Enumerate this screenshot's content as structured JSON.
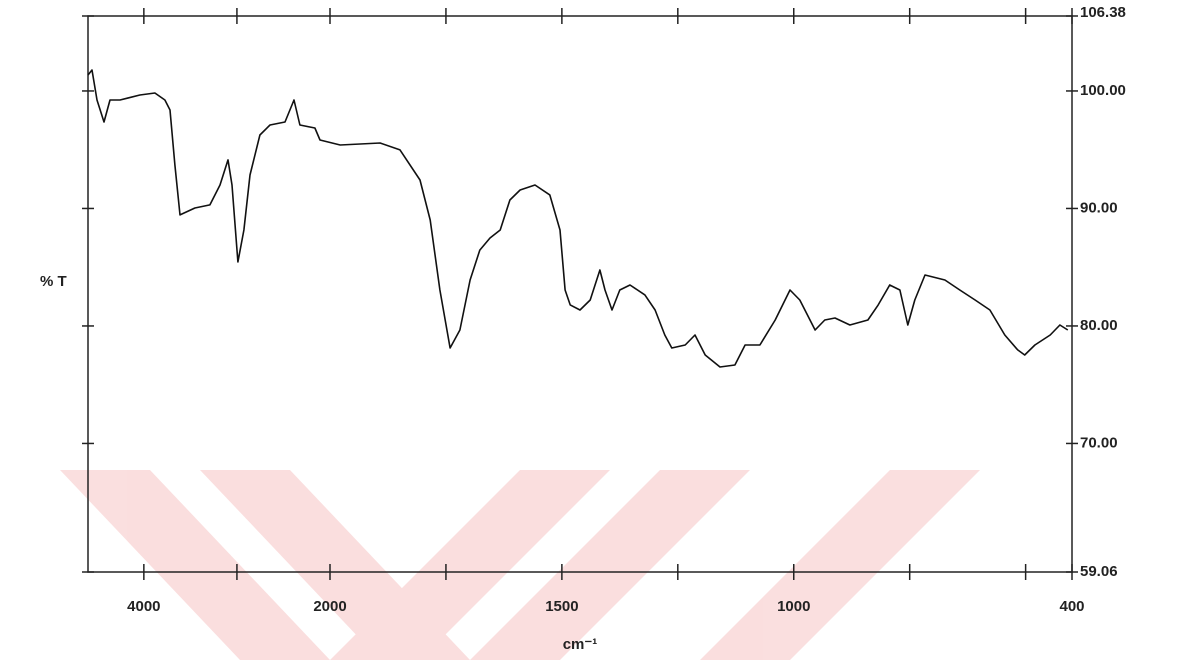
{
  "chart_data": {
    "type": "line",
    "y_label": "% T",
    "x_label": "cm⁻¹",
    "x": [
      4600,
      4557,
      4503,
      4428,
      4364,
      4256,
      4042,
      3881,
      3774,
      3719,
      3666,
      3612,
      3451,
      3290,
      3182,
      3096,
      3053,
      2989,
      2925,
      2860,
      2753,
      2645,
      2484,
      2387,
      2323,
      2162,
      2107,
      1978,
      1892,
      1849,
      1806,
      1784,
      1763,
      1741,
      1720,
      1698,
      1677,
      1655,
      1633,
      1612,
      1590,
      1558,
      1526,
      1504,
      1493,
      1482,
      1461,
      1439,
      1418,
      1407,
      1392,
      1375,
      1353,
      1321,
      1299,
      1278,
      1263,
      1234,
      1213,
      1191,
      1159,
      1127,
      1105,
      1073,
      1040,
      1008,
      987,
      954,
      933,
      911,
      879,
      840,
      818,
      793,
      771,
      754,
      739,
      717,
      674,
      642,
      609,
      577,
      545,
      517,
      502,
      480,
      447,
      426,
      409
    ],
    "values": [
      101.36,
      101.78,
      99.23,
      97.36,
      99.23,
      99.23,
      99.66,
      99.83,
      99.23,
      98.38,
      93.7,
      89.45,
      90.04,
      90.3,
      92.0,
      94.13,
      92.0,
      85.44,
      88.17,
      92.85,
      96.25,
      97.1,
      97.36,
      99.23,
      97.1,
      96.85,
      95.83,
      95.4,
      95.57,
      94.98,
      92.42,
      89.02,
      83.06,
      78.12,
      79.66,
      83.91,
      86.46,
      87.49,
      88.17,
      90.72,
      91.57,
      92.0,
      91.15,
      88.17,
      83.06,
      81.79,
      81.36,
      82.21,
      84.76,
      83.06,
      81.36,
      83.06,
      83.49,
      82.64,
      81.36,
      79.23,
      78.12,
      78.38,
      79.23,
      77.53,
      76.51,
      76.68,
      78.38,
      78.38,
      80.51,
      83.06,
      82.21,
      79.66,
      80.51,
      80.68,
      80.08,
      80.51,
      81.79,
      83.49,
      83.06,
      80.08,
      82.21,
      84.34,
      83.91,
      83.06,
      82.21,
      81.36,
      79.23,
      77.96,
      77.53,
      78.38,
      79.23,
      80.08,
      79.66
    ],
    "color": "#111111",
    "xlim": [
      4600,
      400
    ],
    "x_scale_break": 2000,
    "xticks": [
      4000,
      2000,
      1500,
      1000,
      400
    ],
    "xminor_ticks": [
      3000,
      1750,
      1250,
      750,
      500
    ],
    "ylim": [
      59.06,
      106.38
    ],
    "yticks": [
      59.06,
      {
        "value": 70,
        "label": "70.00"
      },
      {
        "value": 80,
        "label": "80.00"
      },
      {
        "value": 90,
        "label": "90.00"
      },
      {
        "value": 100,
        "label": "100.00"
      },
      106.38
    ],
    "y_axis_side": "right"
  }
}
